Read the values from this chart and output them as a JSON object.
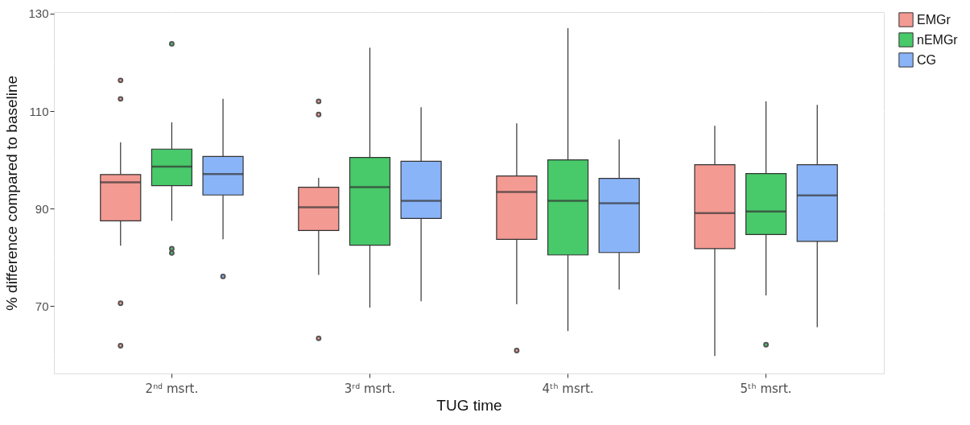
{
  "chart_data": {
    "type": "box",
    "xlabel": "TUG time",
    "ylabel": "% difference compared to baseline",
    "categories": [
      "2ⁿᵈ msrt.",
      "3ʳᵈ msrt.",
      "4ᵗʰ msrt.",
      "5ᵗʰ msrt."
    ],
    "series": [
      {
        "name": "EMGr",
        "color": "#f39a93",
        "boxes": [
          {
            "low": 82.4,
            "q1": 87.5,
            "median": 95.4,
            "q3": 97.0,
            "high": 103.6,
            "outliers": [
              116.3,
              112.5,
              70.6,
              61.9
            ]
          },
          {
            "low": 76.4,
            "q1": 85.5,
            "median": 90.3,
            "q3": 94.4,
            "high": 96.3,
            "outliers": [
              112.0,
              109.3,
              63.4
            ]
          },
          {
            "low": 70.4,
            "q1": 83.7,
            "median": 93.4,
            "q3": 96.7,
            "high": 107.5,
            "outliers": [
              60.9
            ]
          },
          {
            "low": 59.8,
            "q1": 81.8,
            "median": 89.1,
            "q3": 99.0,
            "high": 107.0
          }
        ]
      },
      {
        "name": "nEMGr",
        "color": "#48c96a",
        "boxes": [
          {
            "low": 87.5,
            "q1": 94.7,
            "median": 98.6,
            "q3": 102.2,
            "high": 107.7,
            "outliers": [
              123.8,
              81.8,
              80.9
            ]
          },
          {
            "low": 69.7,
            "q1": 82.5,
            "median": 94.4,
            "q3": 100.5,
            "high": 123.0
          },
          {
            "low": 64.9,
            "q1": 80.5,
            "median": 91.6,
            "q3": 100.0,
            "high": 127.0
          },
          {
            "low": 72.2,
            "q1": 84.7,
            "median": 89.4,
            "q3": 97.2,
            "high": 112.0,
            "outliers": [
              62.1
            ]
          }
        ]
      },
      {
        "name": "CG",
        "color": "#8ab4f8",
        "boxes": [
          {
            "low": 83.7,
            "q1": 92.8,
            "median": 97.1,
            "q3": 100.7,
            "high": 112.5,
            "outliers": [
              76.1
            ]
          },
          {
            "low": 71.0,
            "q1": 88.0,
            "median": 91.6,
            "q3": 99.7,
            "high": 110.8
          },
          {
            "low": 73.4,
            "q1": 81.0,
            "median": 91.1,
            "q3": 96.2,
            "high": 104.2
          },
          {
            "low": 65.7,
            "q1": 83.3,
            "median": 92.7,
            "q3": 99.0,
            "high": 111.3
          }
        ]
      }
    ],
    "ylim": [
      56.2,
      130.3
    ],
    "yticks": [
      {
        "value": 60,
        "label": null
      },
      70,
      {
        "value": 80,
        "label": null
      },
      90,
      {
        "value": 100,
        "label": null
      },
      110,
      {
        "value": 120,
        "label": null
      },
      130
    ],
    "grid": true,
    "legend": "right"
  }
}
